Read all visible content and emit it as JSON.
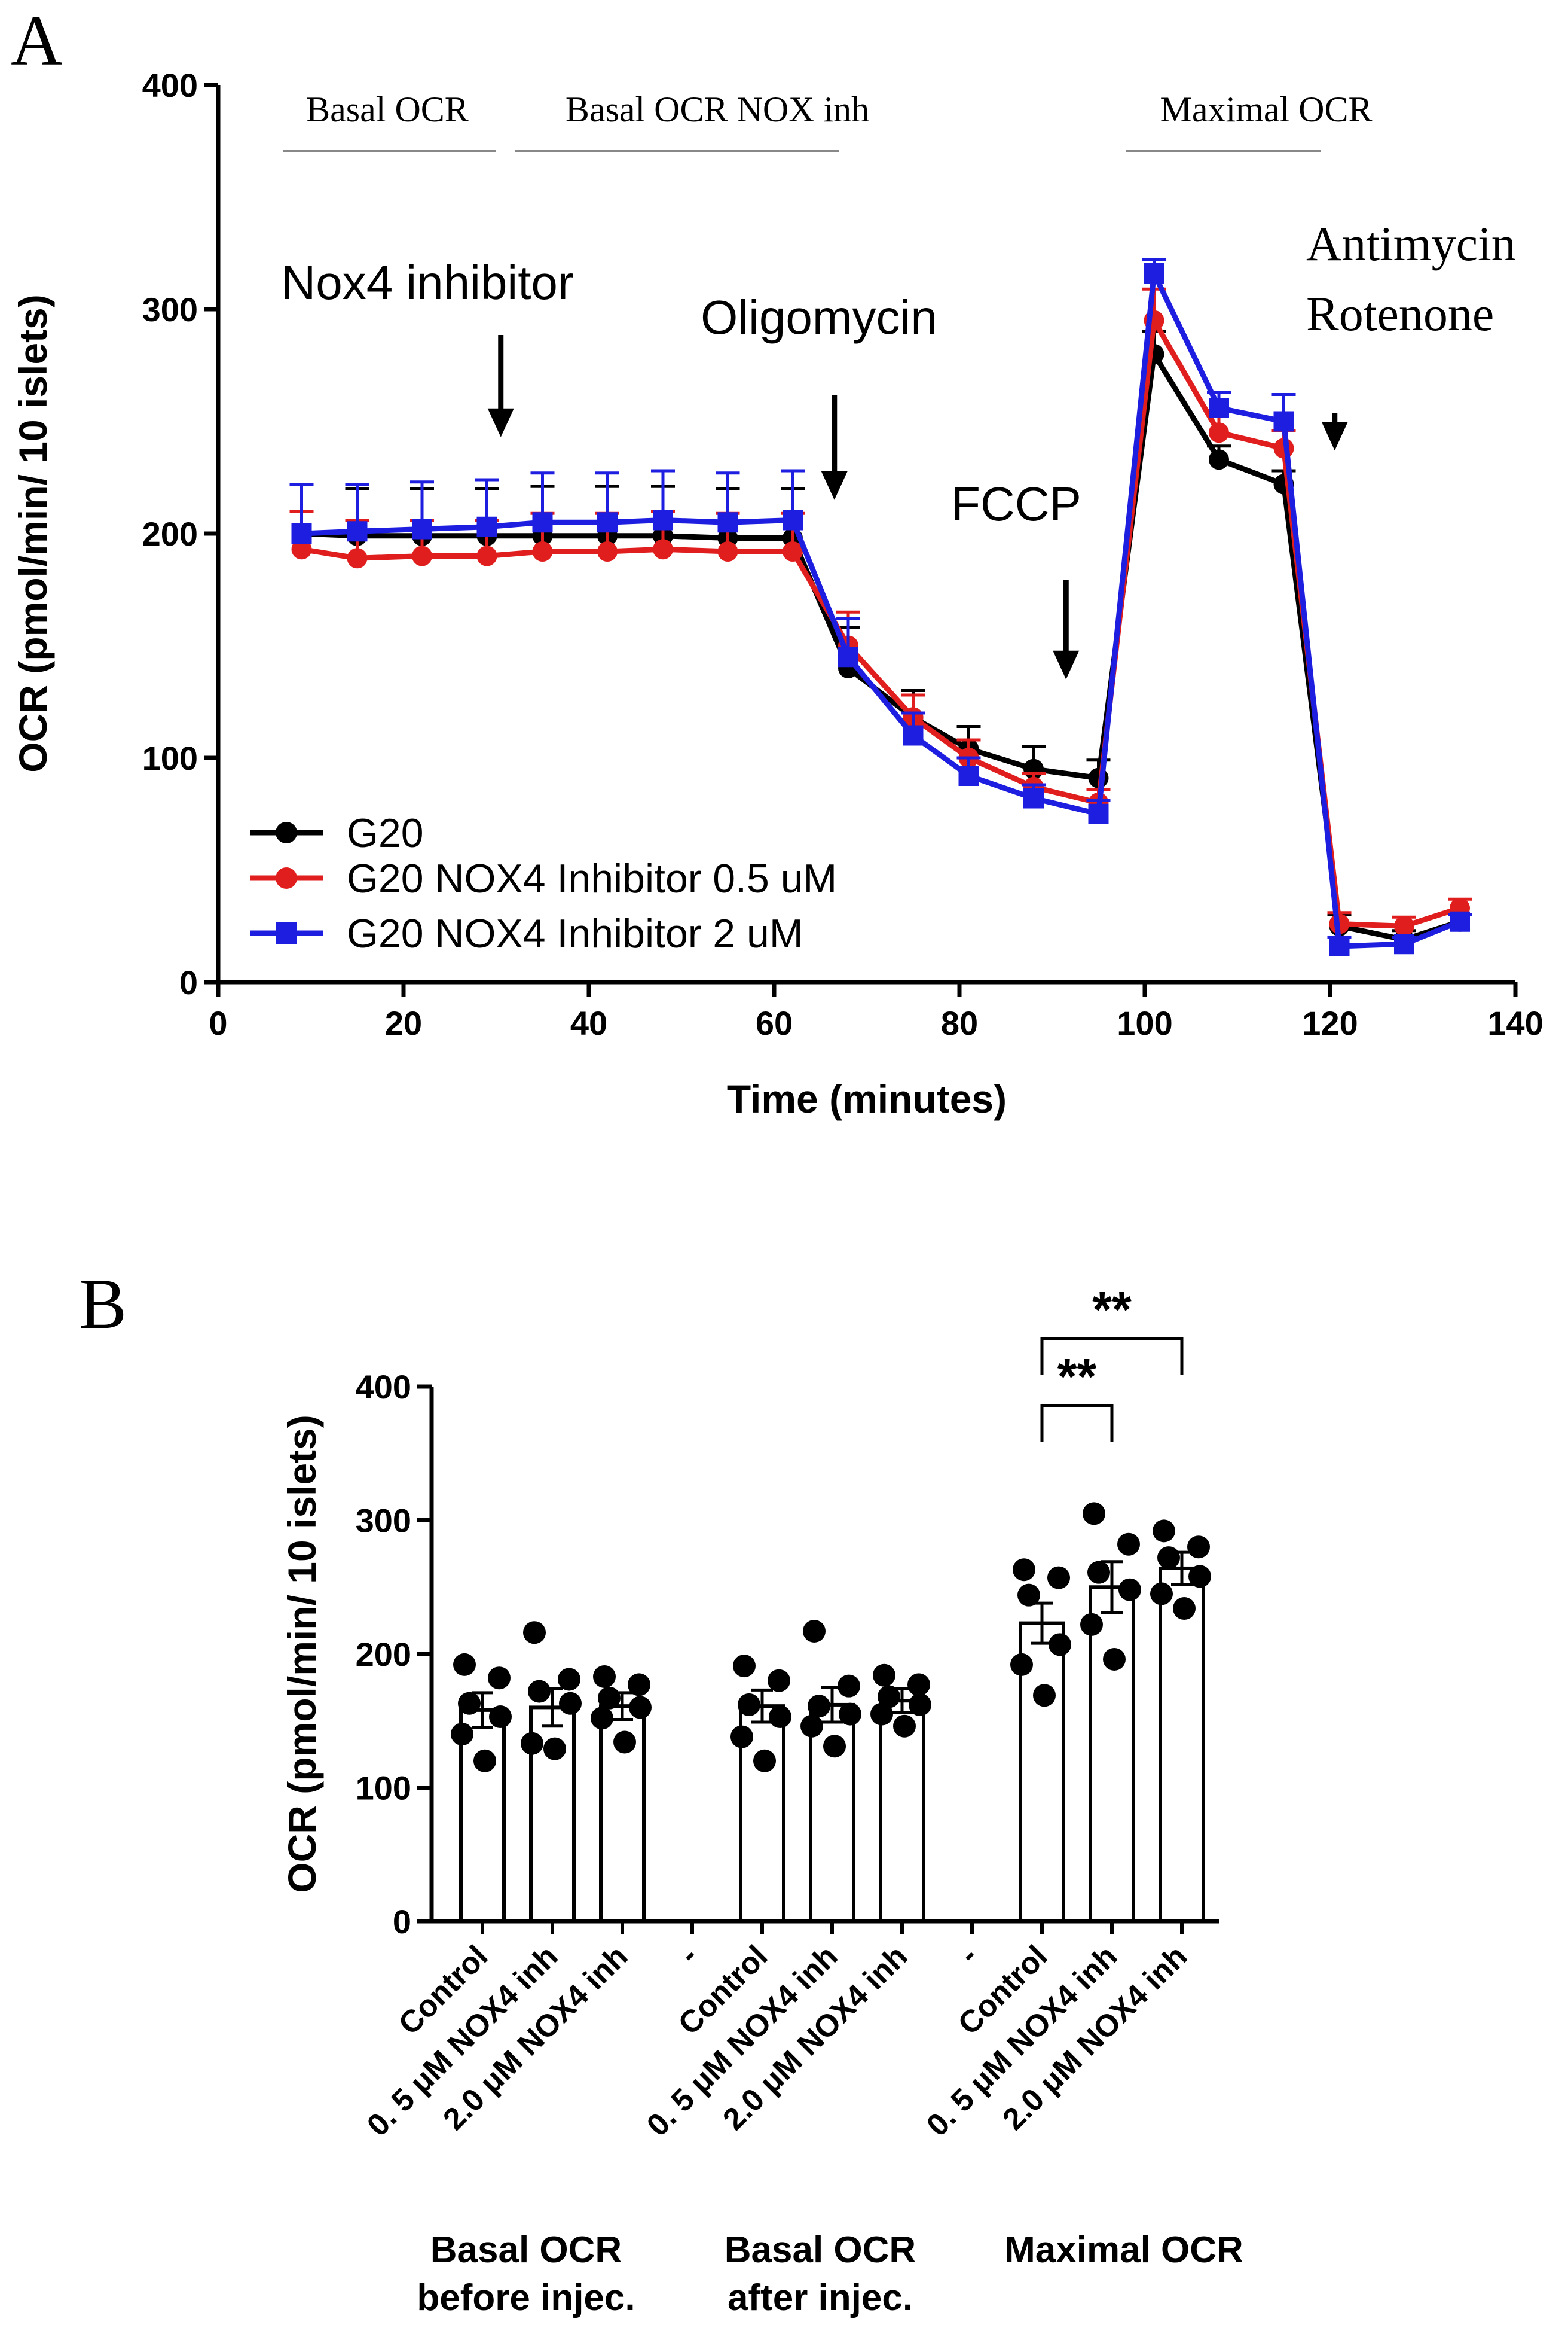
{
  "chart_data": [
    {
      "type": "line",
      "panel_label": "A",
      "title": "",
      "xlabel": "Time (minutes)",
      "ylabel": "OCR (pmol/min/ 10 islets)",
      "xlim": [
        0,
        140
      ],
      "ylim": [
        0,
        400
      ],
      "xticks": [
        0,
        20,
        40,
        60,
        80,
        100,
        120,
        140
      ],
      "yticks": [
        0,
        100,
        200,
        300,
        400
      ],
      "x": [
        9,
        15,
        22,
        29,
        35,
        42,
        48,
        55,
        62,
        68,
        75,
        81,
        88,
        95,
        101,
        108,
        115,
        121,
        128,
        134
      ],
      "series": [
        {
          "name": "G20",
          "color": "#000000",
          "marker": "circle",
          "values": [
            200,
            199,
            199,
            199,
            199,
            199,
            199,
            198,
            198,
            140,
            118,
            104,
            95,
            91,
            280,
            233,
            222,
            25,
            19,
            27
          ],
          "errors": [
            22,
            21,
            21,
            21,
            22,
            22,
            22,
            22,
            22,
            18,
            12,
            10,
            10,
            8,
            10,
            6,
            6,
            5,
            4,
            3
          ]
        },
        {
          "name": "G20 NOX4 Inhibitor 0.5 uM",
          "color": "#e01e1e",
          "marker": "circle",
          "values": [
            193,
            189,
            190,
            190,
            192,
            192,
            193,
            192,
            192,
            150,
            118,
            100,
            87,
            80,
            295,
            245,
            238,
            26,
            25,
            33
          ],
          "errors": [
            17,
            17,
            16,
            16,
            17,
            17,
            17,
            17,
            17,
            15,
            10,
            8,
            6,
            6,
            14,
            10,
            8,
            5,
            4,
            4
          ]
        },
        {
          "name": "G20 NOX4 Inhibitor 2 uM",
          "color": "#1e1ee0",
          "marker": "square",
          "values": [
            200,
            201,
            202,
            203,
            205,
            205,
            206,
            205,
            206,
            145,
            110,
            92,
            82,
            75,
            316,
            256,
            250,
            16,
            17,
            27
          ],
          "errors": [
            22,
            21,
            21,
            21,
            22,
            22,
            22,
            22,
            22,
            17,
            10,
            8,
            6,
            6,
            6,
            7,
            12,
            4,
            3,
            3
          ]
        }
      ],
      "phases": [
        {
          "label": "Basal OCR",
          "x_start": 7,
          "x_end": 30
        },
        {
          "label": "Basal OCR NOX inh",
          "x_start": 32,
          "x_end": 67
        },
        {
          "label": "Maximal OCR",
          "x_start": 98,
          "x_end": 119
        }
      ],
      "injections": [
        {
          "label": "Nox4 inhibitor",
          "x": 30.5,
          "y_tip": 243
        },
        {
          "label": "Oligomycin",
          "x": 66.5,
          "y_tip": 215
        },
        {
          "label": "FCCP",
          "x": 91.5,
          "y_tip": 135
        },
        {
          "label": "Antimycin Rotenone",
          "label_lines": [
            "Antimycin",
            "Rotenone"
          ],
          "x": 120.5,
          "y_tip": 237
        }
      ],
      "legend_position": "lower-left"
    },
    {
      "type": "bar",
      "panel_label": "B",
      "title": "",
      "xlabel": "",
      "ylabel": "OCR (pmol/min/ 10 islets)",
      "ylim": [
        0,
        400
      ],
      "yticks": [
        0,
        100,
        200,
        300,
        400
      ],
      "categories": [
        "Control",
        "0. 5 μM NOX4 inh",
        "2.0 μM NOX4 inh",
        "-",
        "Control",
        "0. 5 μM NOX4 inh",
        "2.0 μM NOX4 inh",
        "-",
        "Control",
        "0. 5 μM NOX4 inh",
        "2.0 μM NOX4 inh"
      ],
      "values": [
        158,
        160,
        161,
        null,
        161,
        162,
        165,
        null,
        223,
        250,
        264
      ],
      "errors": [
        13,
        14,
        10,
        null,
        12,
        13,
        9,
        null,
        15,
        19,
        12
      ],
      "points": [
        [
          192,
          182,
          163,
          153,
          140,
          120
        ],
        [
          216,
          181,
          172,
          163,
          133,
          129
        ],
        [
          183,
          177,
          167,
          160,
          152,
          134
        ],
        [],
        [
          191,
          180,
          162,
          153,
          138,
          120
        ],
        [
          217,
          176,
          161,
          155,
          146,
          131
        ],
        [
          184,
          177,
          168,
          162,
          155,
          146
        ],
        [],
        [
          263,
          257,
          244,
          207,
          192,
          169
        ],
        [
          305,
          282,
          261,
          248,
          222,
          196
        ],
        [
          292,
          280,
          272,
          258,
          245,
          234
        ]
      ],
      "groups": [
        {
          "label_lines": [
            "Basal OCR",
            "before injec."
          ]
        },
        {
          "label_lines": [
            "Basal OCR",
            "after injec."
          ]
        },
        {
          "label_lines": [
            "Maximal OCR"
          ]
        }
      ],
      "significance": [
        {
          "from": 8,
          "to": 9,
          "label": "**"
        },
        {
          "from": 8,
          "to": 10,
          "label": "**"
        }
      ]
    }
  ]
}
